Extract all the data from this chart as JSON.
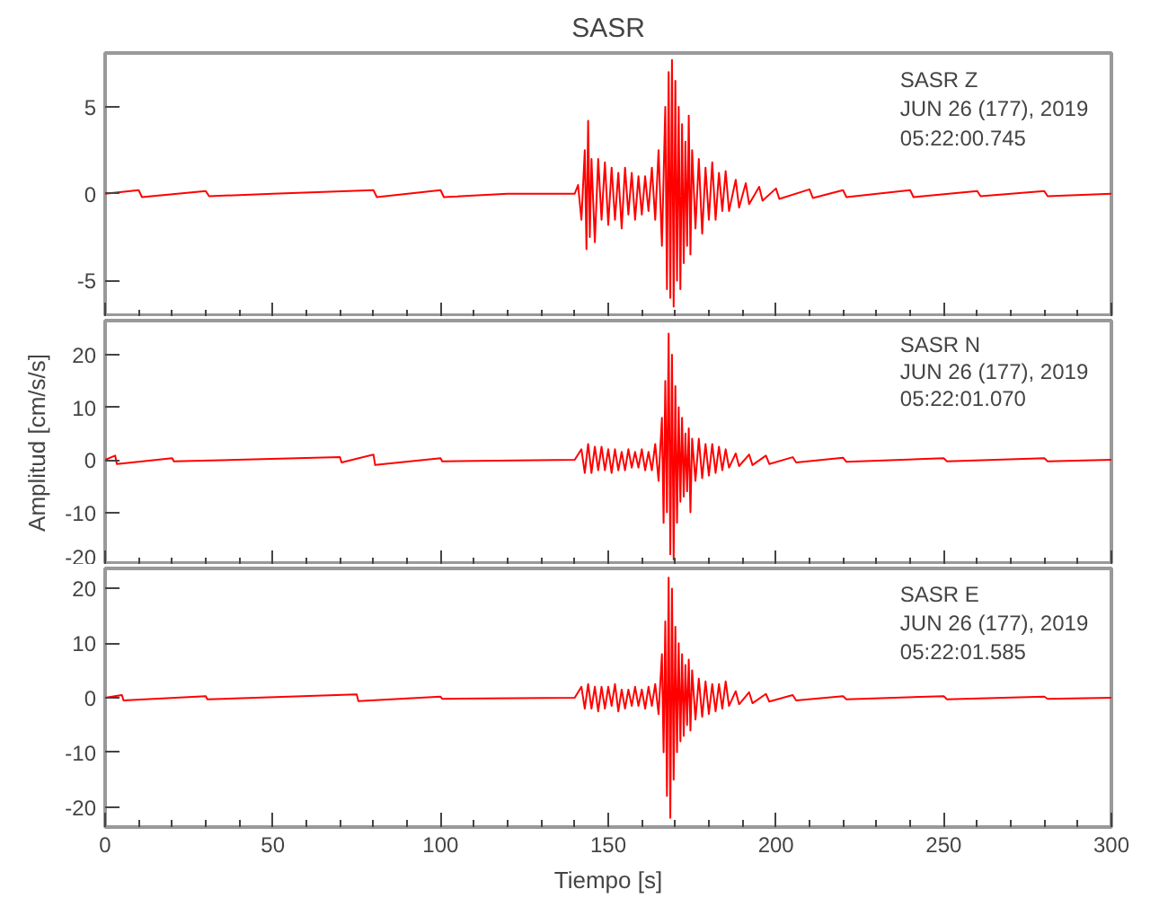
{
  "chart_data": [
    {
      "type": "line",
      "title": "SASR",
      "xlim": [
        0,
        300
      ],
      "ylim": [
        -7.1,
        8.1
      ],
      "yticks": [
        -5,
        0,
        5
      ],
      "tick_labels": "y",
      "xticks": [
        0,
        {
          "value": 10,
          "label": null
        },
        {
          "value": 20,
          "label": null
        },
        {
          "value": 30,
          "label": null
        },
        {
          "value": 40,
          "label": null
        },
        50,
        {
          "value": 60,
          "label": null
        },
        {
          "value": 70,
          "label": null
        },
        {
          "value": 80,
          "label": null
        },
        {
          "value": 90,
          "label": null
        },
        100,
        {
          "value": 110,
          "label": null
        },
        {
          "value": 120,
          "label": null
        },
        {
          "value": 130,
          "label": null
        },
        {
          "value": 140,
          "label": null
        },
        150,
        {
          "value": 160,
          "label": null
        },
        {
          "value": 170,
          "label": null
        },
        {
          "value": 180,
          "label": null
        },
        {
          "value": 190,
          "label": null
        },
        200,
        {
          "value": 210,
          "label": null
        },
        {
          "value": 220,
          "label": null
        },
        {
          "value": 230,
          "label": null
        },
        {
          "value": 240,
          "label": null
        },
        250,
        {
          "value": 260,
          "label": null
        },
        {
          "value": 270,
          "label": null
        },
        {
          "value": 280,
          "label": null
        },
        {
          "value": 290,
          "label": null
        },
        300
      ],
      "annotations": [
        "SASR   Z",
        "JUN 26 (177), 2019",
        "05:22:00.745"
      ],
      "series": [
        {
          "color": "#ff0000",
          "x": [
            0,
            10,
            11,
            30,
            31,
            50,
            80,
            81,
            100,
            101,
            120,
            140,
            141,
            142,
            143,
            143.5,
            144,
            144.5,
            145,
            146,
            147,
            148,
            149,
            150,
            151,
            152,
            153,
            154,
            155,
            156,
            157,
            158,
            159,
            160,
            161,
            162,
            163,
            164,
            165,
            166,
            167,
            167.5,
            168,
            168.5,
            169,
            169.5,
            170,
            170.5,
            171,
            171.5,
            172,
            172.5,
            173,
            173.5,
            174,
            174.5,
            175,
            176,
            177,
            178,
            179,
            180,
            181,
            182,
            183,
            184,
            185,
            186,
            188,
            189,
            191,
            192,
            195,
            196,
            200,
            201,
            210,
            211,
            220,
            221,
            240,
            241,
            260,
            261,
            280,
            281,
            300
          ],
          "values": [
            0,
            0.2,
            -0.2,
            0.15,
            -0.15,
            0,
            0.2,
            -0.2,
            0.2,
            -0.2,
            0,
            0,
            0.5,
            -1.5,
            2.5,
            -3.2,
            4.2,
            -2.5,
            2,
            -2.8,
            2,
            -1.5,
            1.8,
            -1.8,
            1.5,
            -1.5,
            1.2,
            -2,
            1.5,
            -1.2,
            1.2,
            -1.5,
            1,
            -1.2,
            1,
            -1,
            1.5,
            -1.5,
            2.5,
            -3,
            5,
            -5.5,
            7,
            -6,
            7.7,
            -6.5,
            6.5,
            -5,
            5,
            -5.5,
            4,
            -4,
            3,
            -3,
            4.5,
            -3.5,
            2.5,
            -2,
            2,
            -2.3,
            1.5,
            -1.5,
            1.8,
            -1.5,
            1.2,
            -1,
            1.3,
            -1,
            0.8,
            -0.8,
            0.6,
            -0.6,
            0.4,
            -0.4,
            0.3,
            -0.3,
            0.25,
            -0.25,
            0.2,
            -0.2,
            0.2,
            -0.2,
            0.15,
            -0.15,
            0.15,
            -0.15,
            0
          ]
        }
      ]
    },
    {
      "type": "line",
      "ylabel": "Amplitud [cm/s/s]",
      "xlim": [
        0,
        300
      ],
      "ylim": [
        -20,
        26.5
      ],
      "yticks": [
        -20,
        -10,
        0,
        10,
        20
      ],
      "tick_labels": "y",
      "xticks": [
        0,
        {
          "value": 10,
          "label": null
        },
        {
          "value": 20,
          "label": null
        },
        {
          "value": 30,
          "label": null
        },
        {
          "value": 40,
          "label": null
        },
        50,
        {
          "value": 60,
          "label": null
        },
        {
          "value": 70,
          "label": null
        },
        {
          "value": 80,
          "label": null
        },
        {
          "value": 90,
          "label": null
        },
        100,
        {
          "value": 110,
          "label": null
        },
        {
          "value": 120,
          "label": null
        },
        {
          "value": 130,
          "label": null
        },
        {
          "value": 140,
          "label": null
        },
        150,
        {
          "value": 160,
          "label": null
        },
        {
          "value": 170,
          "label": null
        },
        {
          "value": 180,
          "label": null
        },
        {
          "value": 190,
          "label": null
        },
        200,
        {
          "value": 210,
          "label": null
        },
        {
          "value": 220,
          "label": null
        },
        {
          "value": 230,
          "label": null
        },
        {
          "value": 240,
          "label": null
        },
        250,
        {
          "value": 260,
          "label": null
        },
        {
          "value": 270,
          "label": null
        },
        {
          "value": 280,
          "label": null
        },
        {
          "value": 290,
          "label": null
        },
        300
      ],
      "annotations": [
        "SASR   N",
        "JUN 26 (177), 2019",
        "05:22:01.070"
      ],
      "series": [
        {
          "color": "#ff0000",
          "x": [
            0,
            3,
            3.5,
            20,
            20.5,
            70,
            70.5,
            80,
            80.5,
            100,
            100.5,
            140,
            142,
            143,
            144,
            145,
            146,
            147,
            148,
            149,
            150,
            151,
            152,
            153,
            154,
            155,
            156,
            157,
            158,
            159,
            160,
            161,
            162,
            163,
            164,
            165,
            166,
            166.5,
            167,
            167.5,
            168,
            168.5,
            169,
            169.5,
            170,
            170.5,
            171,
            171.5,
            172,
            172.5,
            173,
            173.5,
            174,
            174.5,
            175,
            176,
            177,
            178,
            179,
            180,
            181,
            182,
            183,
            184,
            185,
            186,
            188,
            189,
            192,
            193,
            197,
            198,
            205,
            206,
            220,
            221,
            250,
            251,
            280,
            281,
            300
          ],
          "values": [
            0,
            0.8,
            -0.8,
            0.3,
            -0.3,
            0.5,
            -0.5,
            1,
            -1,
            0.3,
            -0.3,
            0,
            2,
            -2.5,
            3,
            -2.5,
            2.5,
            -2,
            2.5,
            -2,
            2,
            -2.5,
            2,
            -2,
            1.5,
            -2,
            2,
            -1.5,
            1.5,
            -1.5,
            2,
            -2,
            1.5,
            -2,
            3,
            -4,
            8,
            -12,
            15,
            -10,
            24,
            -18,
            20,
            -19,
            14,
            -12,
            10,
            -8,
            8,
            -7,
            5,
            -6,
            6,
            -10,
            4,
            -4,
            4,
            -3.5,
            3,
            -3,
            3,
            -2.5,
            2.5,
            -2,
            2,
            -1.5,
            1.2,
            -1.2,
            1,
            -1,
            0.8,
            -0.8,
            0.5,
            -0.5,
            0.4,
            -0.4,
            0.3,
            -0.3,
            0.3,
            -0.3,
            0
          ]
        }
      ]
    },
    {
      "type": "line",
      "xlabel": "Tiempo [s]",
      "xlim": [
        0,
        300
      ],
      "ylim": [
        -23.7,
        23.7
      ],
      "yticks": [
        -20,
        -10,
        0,
        10,
        20
      ],
      "xticks": [
        0,
        {
          "value": 10,
          "label": null
        },
        {
          "value": 20,
          "label": null
        },
        {
          "value": 30,
          "label": null
        },
        {
          "value": 40,
          "label": null
        },
        50,
        {
          "value": 60,
          "label": null
        },
        {
          "value": 70,
          "label": null
        },
        {
          "value": 80,
          "label": null
        },
        {
          "value": 90,
          "label": null
        },
        100,
        {
          "value": 110,
          "label": null
        },
        {
          "value": 120,
          "label": null
        },
        {
          "value": 130,
          "label": null
        },
        {
          "value": 140,
          "label": null
        },
        150,
        {
          "value": 160,
          "label": null
        },
        {
          "value": 170,
          "label": null
        },
        {
          "value": 180,
          "label": null
        },
        {
          "value": 190,
          "label": null
        },
        200,
        {
          "value": 210,
          "label": null
        },
        {
          "value": 220,
          "label": null
        },
        {
          "value": 230,
          "label": null
        },
        {
          "value": 240,
          "label": null
        },
        250,
        {
          "value": 260,
          "label": null
        },
        {
          "value": 270,
          "label": null
        },
        {
          "value": 280,
          "label": null
        },
        {
          "value": 290,
          "label": null
        },
        300
      ],
      "annotations": [
        "SASR   E",
        "JUN 26 (177), 2019",
        "05:22:01.585"
      ],
      "series": [
        {
          "color": "#ff0000",
          "x": [
            0,
            5,
            5.5,
            30,
            30.5,
            75,
            75.5,
            100,
            100.5,
            140,
            142,
            143,
            144,
            145,
            146,
            147,
            148,
            149,
            150,
            151,
            152,
            153,
            154,
            155,
            156,
            157,
            158,
            159,
            160,
            161,
            162,
            163,
            164,
            165,
            166,
            166.5,
            167,
            167.5,
            168,
            168.5,
            169,
            169.5,
            170,
            170.5,
            171,
            171.5,
            172,
            172.5,
            173,
            173.5,
            174,
            174.5,
            175,
            176,
            177,
            178,
            179,
            180,
            181,
            182,
            183,
            184,
            185,
            186,
            188,
            189,
            192,
            193,
            197,
            198,
            205,
            206,
            220,
            221,
            250,
            251,
            280,
            281,
            300
          ],
          "values": [
            0,
            0.5,
            -0.5,
            0.3,
            -0.3,
            0.6,
            -0.6,
            0.2,
            -0.2,
            0,
            2,
            -2,
            2.5,
            -2,
            2,
            -2.5,
            2,
            -2,
            2,
            -1.5,
            2.5,
            -2.5,
            1.5,
            -2,
            1.5,
            -1.5,
            2,
            -1.5,
            1.5,
            -2,
            2,
            -1.5,
            2.5,
            -3,
            8,
            -10,
            14,
            -18,
            22,
            -22,
            20,
            -15,
            13,
            -10,
            10,
            -8,
            8,
            -7,
            6,
            -5,
            7,
            -6,
            5,
            -4,
            3.5,
            -3.5,
            3,
            -3,
            2.5,
            -2.5,
            2.5,
            -2,
            3,
            -1.5,
            1.2,
            -1.2,
            1,
            -1,
            0.7,
            -0.7,
            0.5,
            -0.5,
            0.3,
            -0.3,
            0.3,
            -0.3,
            0.2,
            -0.2,
            0
          ]
        }
      ]
    }
  ]
}
